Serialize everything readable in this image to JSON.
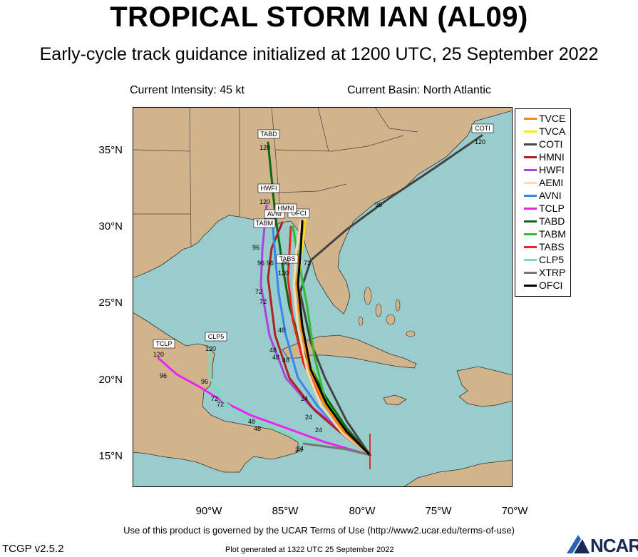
{
  "header": {
    "title": "TROPICAL STORM IAN (AL09)",
    "subtitle": "Early-cycle track guidance initialized at 1200 UTC, 25 September 2022",
    "current_intensity": "Current Intensity: 45 kt",
    "current_basin": "Current Basin: North Atlantic"
  },
  "axes": {
    "lat_labels": [
      "35°N",
      "30°N",
      "25°N",
      "20°N",
      "15°N"
    ],
    "lon_labels": [
      "90°W",
      "85°W",
      "80°W",
      "75°W",
      "70°W"
    ]
  },
  "colors": {
    "ocean": "#99cccc",
    "land": "#d2b48c",
    "border": "#555555"
  },
  "legend": [
    {
      "name": "TVCE",
      "color": "#ff8800"
    },
    {
      "name": "TVCA",
      "color": "#ffee00"
    },
    {
      "name": "COTI",
      "color": "#444444"
    },
    {
      "name": "HMNI",
      "color": "#aa2222"
    },
    {
      "name": "HWFI",
      "color": "#aa44dd"
    },
    {
      "name": "AEMI",
      "color": "#ffdcb0"
    },
    {
      "name": "AVNI",
      "color": "#3388ee"
    },
    {
      "name": "TCLP",
      "color": "#ee22ee"
    },
    {
      "name": "TABD",
      "color": "#116611"
    },
    {
      "name": "TABM",
      "color": "#33bb33"
    },
    {
      "name": "TABS",
      "color": "#ee2222"
    },
    {
      "name": "CLP5",
      "color": "#77ddbb"
    },
    {
      "name": "XTRP",
      "color": "#777777"
    },
    {
      "name": "OFCI",
      "color": "#000000"
    }
  ],
  "map_labels": {
    "tabd_box": "TABD",
    "hwfi_box": "HWFI",
    "coti_box": "COTI",
    "tclp_box": "TCLP",
    "clp5_box": "CLP5",
    "tabs_box": "TABS",
    "avni_box": "AVNI",
    "ofci_box": "OFCI",
    "tabm_box": "TABM",
    "hmni_box": "HMNI",
    "h120": "120",
    "h96": "96",
    "h72": "72",
    "h48": "48",
    "h24": "24"
  },
  "footer": {
    "terms": "Use of this product is governed by the UCAR Terms of Use (http://www2.ucar.edu/terms-of-use)",
    "version": "TCGP v2.5.2",
    "generated": "Plot generated at 1322 UTC   25 September 2022",
    "logo": "NCAR"
  }
}
